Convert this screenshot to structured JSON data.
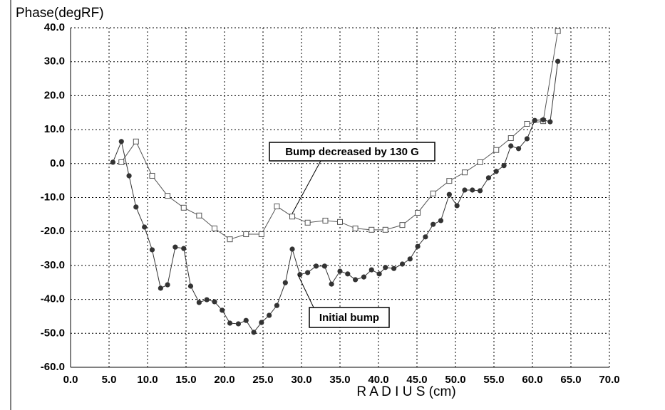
{
  "chart_data": {
    "type": "line",
    "y_label": "Phase(degRF)",
    "x_label": "R A D I U S (cm)",
    "xlim": [
      0,
      70
    ],
    "ylim": [
      -60,
      40
    ],
    "xticks": [
      {
        "value": 0,
        "label": "0.0"
      },
      {
        "value": 5,
        "label": "5.0"
      },
      {
        "value": 10,
        "label": "10.0"
      },
      {
        "value": 15,
        "label": "15.0"
      },
      {
        "value": 20,
        "label": "20.0"
      },
      {
        "value": 25,
        "label": "25.0"
      },
      {
        "value": 30,
        "label": "30.0"
      },
      {
        "value": 35,
        "label": "35.0"
      },
      {
        "value": 40,
        "label": "40.0"
      },
      {
        "value": 45,
        "label": "45.0"
      },
      {
        "value": 50,
        "label": "50.0"
      },
      {
        "value": 55,
        "label": "55.0"
      },
      {
        "value": 60,
        "label": "60.0"
      },
      {
        "value": 65,
        "label": "65.0"
      },
      {
        "value": 70,
        "label": "70.0"
      }
    ],
    "yticks": [
      {
        "value": 40,
        "label": "40.0"
      },
      {
        "value": 30,
        "label": "30.0"
      },
      {
        "value": 20,
        "label": "20.0"
      },
      {
        "value": 10,
        "label": "10.0"
      },
      {
        "value": 0,
        "label": "0.0"
      },
      {
        "value": -10,
        "label": "-10.0"
      },
      {
        "value": -20,
        "label": "-20.0"
      },
      {
        "value": -30,
        "label": "-30.0"
      },
      {
        "value": -40,
        "label": "-40.0"
      },
      {
        "value": -50,
        "label": "-50.0"
      },
      {
        "value": -60,
        "label": "-60.0"
      }
    ],
    "grid": true,
    "series": [
      {
        "name": "Bump decreased by 130 G",
        "color": "#555555",
        "marker": "square",
        "x": [
          6.6,
          8.5,
          10.6,
          12.6,
          14.7,
          16.7,
          18.7,
          20.7,
          22.8,
          24.8,
          26.8,
          28.8,
          30.8,
          33.1,
          35.0,
          37.0,
          39.1,
          40.9,
          43.1,
          45.1,
          47.1,
          49.2,
          51.2,
          53.2,
          55.3,
          57.2,
          59.3,
          61.4,
          63.3
        ],
        "values": [
          0.4,
          6.5,
          -3.6,
          -9.5,
          -13,
          -15.3,
          -19.1,
          -22.3,
          -20.8,
          -20.8,
          -12.6,
          -15.6,
          -17.4,
          -16.8,
          -17.2,
          -19.1,
          -19.5,
          -19.5,
          -18.1,
          -14.5,
          -8.8,
          -5.1,
          -2.6,
          0.4,
          4.0,
          7.5,
          11.7,
          12.5,
          39.0
        ]
      },
      {
        "name": "Initial bump",
        "color": "#333333",
        "marker": "circle",
        "x": [
          5.5,
          6.6,
          7.6,
          8.5,
          9.6,
          10.6,
          11.7,
          12.6,
          13.6,
          14.7,
          15.6,
          16.7,
          17.7,
          18.7,
          19.7,
          20.7,
          21.8,
          22.8,
          23.8,
          24.8,
          25.8,
          26.8,
          27.9,
          28.8,
          29.8,
          30.8,
          31.9,
          33.0,
          33.9,
          35.0,
          36.0,
          37.0,
          38.1,
          39.1,
          40.1,
          40.9,
          42.0,
          43.1,
          44.1,
          45.1,
          46.1,
          47.1,
          48.1,
          49.2,
          50.2,
          51.2,
          52.2,
          53.2,
          54.3,
          55.3,
          56.3,
          57.2,
          58.2,
          59.3,
          60.3,
          61.4,
          62.3,
          63.3
        ],
        "values": [
          0.4,
          6.5,
          -3.6,
          -12.8,
          -18.7,
          -25.4,
          -36.7,
          -35.7,
          -24.6,
          -25,
          -36.1,
          -40.9,
          -40.1,
          -40.7,
          -43.2,
          -47,
          -47.2,
          -46.2,
          -49.7,
          -46.8,
          -44.7,
          -41.8,
          -35.1,
          -25.2,
          -32.7,
          -32.1,
          -30.2,
          -30.2,
          -35.5,
          -31.7,
          -32.5,
          -34.2,
          -33.4,
          -31.3,
          -32.5,
          -30.6,
          -30.9,
          -29.6,
          -28.1,
          -24.4,
          -21.6,
          -17.9,
          -16.8,
          -9.1,
          -12.4,
          -7.8,
          -7.8,
          -8,
          -4.2,
          -2.3,
          -0.6,
          5.2,
          4.4,
          7.3,
          12.7,
          12.9,
          12.3,
          30.1
        ]
      }
    ]
  }
}
